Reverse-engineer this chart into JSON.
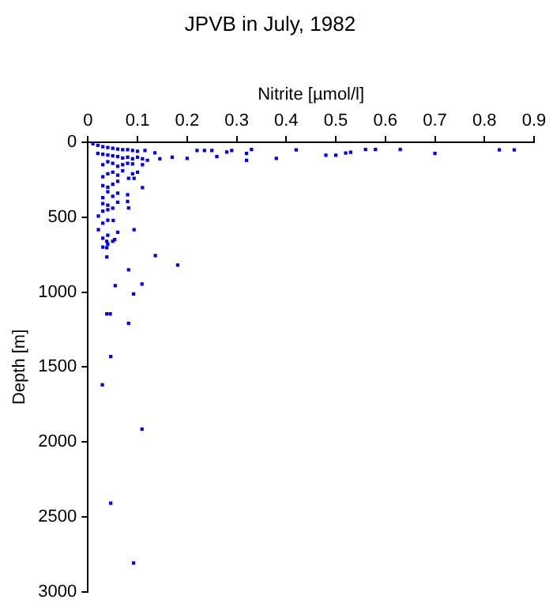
{
  "chart_data": {
    "type": "scatter",
    "title": "JPVB in July, 1982",
    "xlabel": "Nitrite [µmol/l]",
    "ylabel": "Depth [m]",
    "xlim": [
      0,
      0.9
    ],
    "xticks": [
      0,
      0.1,
      0.2,
      0.3,
      0.4,
      0.5,
      0.6,
      0.7,
      0.8,
      0.9
    ],
    "ylim": [
      3000,
      0
    ],
    "yticks": [
      0,
      500,
      1000,
      1500,
      2000,
      2500,
      3000
    ],
    "grid": false,
    "legend": false,
    "marker": "square",
    "series": [
      {
        "color": "#0000ff",
        "x": [
          0.86,
          0.83,
          0.7,
          0.63,
          0.58,
          0.56,
          0.53,
          0.52,
          0.5,
          0.48,
          0.42,
          0.38,
          0.33,
          0.32,
          0.32,
          0.29,
          0.28,
          0.26,
          0.25,
          0.235,
          0.22,
          0.2,
          0.17,
          0.145,
          0.135,
          0.115,
          0.1,
          0.09,
          0.08,
          0.07,
          0.06,
          0.05,
          0.04,
          0.03,
          0.02,
          0.01,
          0.1,
          0.11,
          0.12,
          0.09,
          0.08,
          0.07,
          0.06,
          0.05,
          0.04,
          0.03,
          0.02,
          0.11,
          0.09,
          0.08,
          0.07,
          0.06,
          0.05,
          0.04,
          0.03,
          0.1,
          0.09,
          0.07,
          0.06,
          0.05,
          0.04,
          0.03,
          0.082,
          0.093,
          0.11,
          0.06,
          0.05,
          0.04,
          0.03,
          0.08,
          0.06,
          0.05,
          0.04,
          0.03,
          0.08,
          0.06,
          0.04,
          0.03,
          0.082,
          0.05,
          0.04,
          0.03,
          0.021,
          0.051,
          0.04,
          0.03,
          0.021,
          0.093,
          0.06,
          0.04,
          0.03,
          0.05,
          0.04,
          0.03,
          0.054,
          0.038,
          0.038,
          0.136,
          0.038,
          0.181,
          0.082,
          0.109,
          0.055,
          0.092,
          0.038,
          0.045,
          0.082,
          0.046,
          0.029,
          0.109,
          0.046,
          0.092
        ],
        "values": [
          51,
          51,
          75,
          48,
          48,
          48,
          67,
          72,
          86,
          86,
          51,
          107,
          48,
          75,
          121,
          55,
          65,
          96,
          55,
          55,
          55,
          107,
          100,
          110,
          70,
          55,
          60,
          55,
          50,
          50,
          45,
          40,
          35,
          30,
          20,
          10,
          100,
          110,
          120,
          110,
          100,
          105,
          95,
          90,
          85,
          80,
          75,
          150,
          145,
          140,
          150,
          160,
          140,
          130,
          150,
          200,
          210,
          190,
          220,
          200,
          210,
          230,
          240,
          240,
          303,
          260,
          280,
          300,
          290,
          350,
          340,
          360,
          330,
          370,
          395,
          400,
          420,
          410,
          438,
          440,
          450,
          460,
          493,
          521,
          520,
          540,
          584,
          584,
          600,
          620,
          640,
          660,
          680,
          700,
          650,
          661,
          703,
          756,
          766,
          819,
          851,
          946,
          956,
          1012,
          1145,
          1145,
          1209,
          1430,
          1619,
          1914,
          2408,
          2808
        ]
      }
    ]
  }
}
